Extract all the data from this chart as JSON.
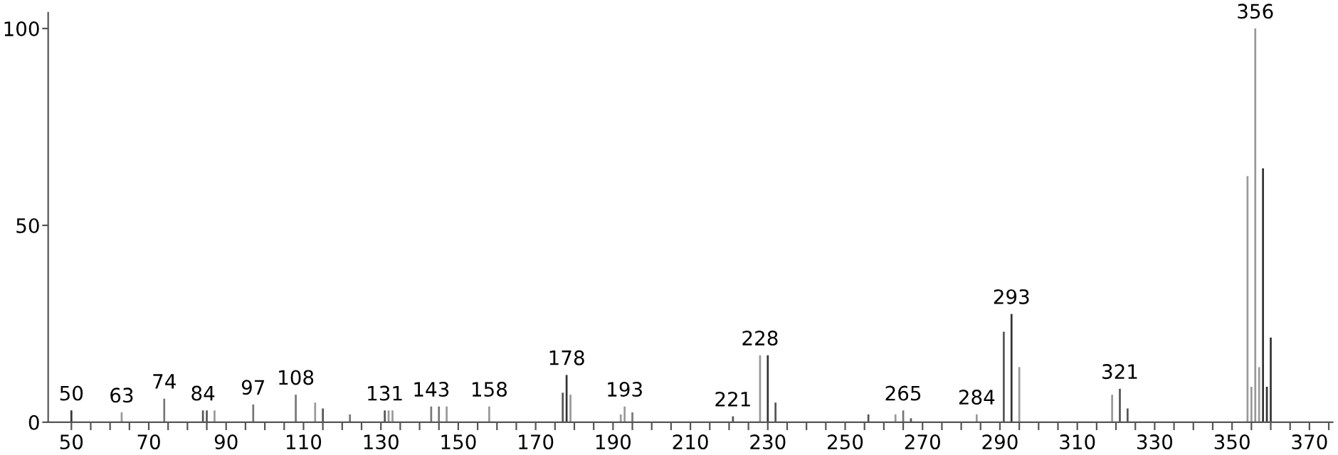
{
  "chart_data": {
    "type": "bar",
    "x": [
      50,
      63,
      74,
      84,
      85,
      87,
      97,
      108,
      113,
      115,
      122,
      131,
      132,
      133,
      143,
      145,
      147,
      158,
      177,
      178,
      179,
      192,
      193,
      195,
      221,
      228,
      230,
      232,
      256,
      263,
      265,
      267,
      284,
      291,
      293,
      295,
      319,
      321,
      323,
      354,
      355,
      356,
      357,
      358,
      359,
      360
    ],
    "values": [
      3,
      2.5,
      6,
      3,
      3,
      3,
      4.5,
      7,
      5,
      3.5,
      2,
      3,
      3,
      3,
      4,
      4,
      4,
      4,
      7.5,
      12,
      7,
      2,
      4,
      2.5,
      1.5,
      17,
      17,
      5,
      2,
      2,
      3,
      1,
      2,
      23,
      27.5,
      14,
      7,
      8.5,
      3.5,
      62.5,
      9,
      100,
      14,
      64.5,
      9,
      21.5
    ],
    "colors": [
      "#333333",
      "#999999",
      "#777777",
      "#555555",
      "#555555",
      "#999999",
      "#777777",
      "#777777",
      "#999999",
      "#555555",
      "#777777",
      "#555555",
      "#999999",
      "#999999",
      "#777777",
      "#777777",
      "#999999",
      "#999999",
      "#555555",
      "#333333",
      "#999999",
      "#999999",
      "#999999",
      "#777777",
      "#555555",
      "#999999",
      "#333333",
      "#555555",
      "#555555",
      "#999999",
      "#777777",
      "#555555",
      "#999999",
      "#555555",
      "#333333",
      "#999999",
      "#999999",
      "#555555",
      "#555555",
      "#999999",
      "#999999",
      "#999999",
      "#999999",
      "#333333",
      "#333333",
      "#333333"
    ],
    "xlim": [
      44,
      376
    ],
    "xticks": [
      50,
      {
        "value": 55,
        "label": null
      },
      {
        "value": 60,
        "label": null
      },
      {
        "value": 65,
        "label": null
      },
      70,
      {
        "value": 75,
        "label": null
      },
      {
        "value": 80,
        "label": null
      },
      {
        "value": 85,
        "label": null
      },
      90,
      {
        "value": 95,
        "label": null
      },
      {
        "value": 100,
        "label": null
      },
      {
        "value": 105,
        "label": null
      },
      110,
      {
        "value": 115,
        "label": null
      },
      {
        "value": 120,
        "label": null
      },
      {
        "value": 125,
        "label": null
      },
      130,
      {
        "value": 135,
        "label": null
      },
      {
        "value": 140,
        "label": null
      },
      {
        "value": 145,
        "label": null
      },
      150,
      {
        "value": 155,
        "label": null
      },
      {
        "value": 160,
        "label": null
      },
      {
        "value": 165,
        "label": null
      },
      170,
      {
        "value": 175,
        "label": null
      },
      {
        "value": 180,
        "label": null
      },
      {
        "value": 185,
        "label": null
      },
      190,
      {
        "value": 195,
        "label": null
      },
      {
        "value": 200,
        "label": null
      },
      {
        "value": 205,
        "label": null
      },
      210,
      {
        "value": 215,
        "label": null
      },
      {
        "value": 220,
        "label": null
      },
      {
        "value": 225,
        "label": null
      },
      230,
      {
        "value": 235,
        "label": null
      },
      {
        "value": 240,
        "label": null
      },
      {
        "value": 245,
        "label": null
      },
      250,
      {
        "value": 255,
        "label": null
      },
      {
        "value": 260,
        "label": null
      },
      {
        "value": 265,
        "label": null
      },
      270,
      {
        "value": 275,
        "label": null
      },
      {
        "value": 280,
        "label": null
      },
      {
        "value": 285,
        "label": null
      },
      290,
      {
        "value": 295,
        "label": null
      },
      {
        "value": 300,
        "label": null
      },
      {
        "value": 305,
        "label": null
      },
      310,
      {
        "value": 315,
        "label": null
      },
      {
        "value": 320,
        "label": null
      },
      {
        "value": 325,
        "label": null
      },
      330,
      {
        "value": 335,
        "label": null
      },
      {
        "value": 340,
        "label": null
      },
      {
        "value": 345,
        "label": null
      },
      350,
      {
        "value": 355,
        "label": null
      },
      {
        "value": 360,
        "label": null
      },
      {
        "value": 365,
        "label": null
      },
      370,
      {
        "value": 375,
        "label": null
      }
    ],
    "ylim": [
      0,
      104
    ],
    "yticks": [
      0,
      50,
      100
    ],
    "grid": false,
    "annotations": [
      {
        "text": "50",
        "x": 50,
        "y": 3
      },
      {
        "text": "63",
        "x": 63,
        "y": 2.5
      },
      {
        "text": "74",
        "x": 74,
        "y": 6
      },
      {
        "text": "84",
        "x": 84,
        "y": 3
      },
      {
        "text": "97",
        "x": 97,
        "y": 4.5
      },
      {
        "text": "108",
        "x": 108,
        "y": 7
      },
      {
        "text": "131",
        "x": 131,
        "y": 3
      },
      {
        "text": "143",
        "x": 143,
        "y": 4
      },
      {
        "text": "158",
        "x": 158,
        "y": 4
      },
      {
        "text": "178",
        "x": 178,
        "y": 12
      },
      {
        "text": "193",
        "x": 193,
        "y": 4
      },
      {
        "text": "221",
        "x": 221,
        "y": 1.5
      },
      {
        "text": "228",
        "x": 228,
        "y": 17
      },
      {
        "text": "265",
        "x": 265,
        "y": 3
      },
      {
        "text": "284",
        "x": 284,
        "y": 2
      },
      {
        "text": "293",
        "x": 293,
        "y": 27.5
      },
      {
        "text": "321",
        "x": 321,
        "y": 8.5
      },
      {
        "text": "356",
        "x": 356,
        "y": 100
      }
    ]
  }
}
